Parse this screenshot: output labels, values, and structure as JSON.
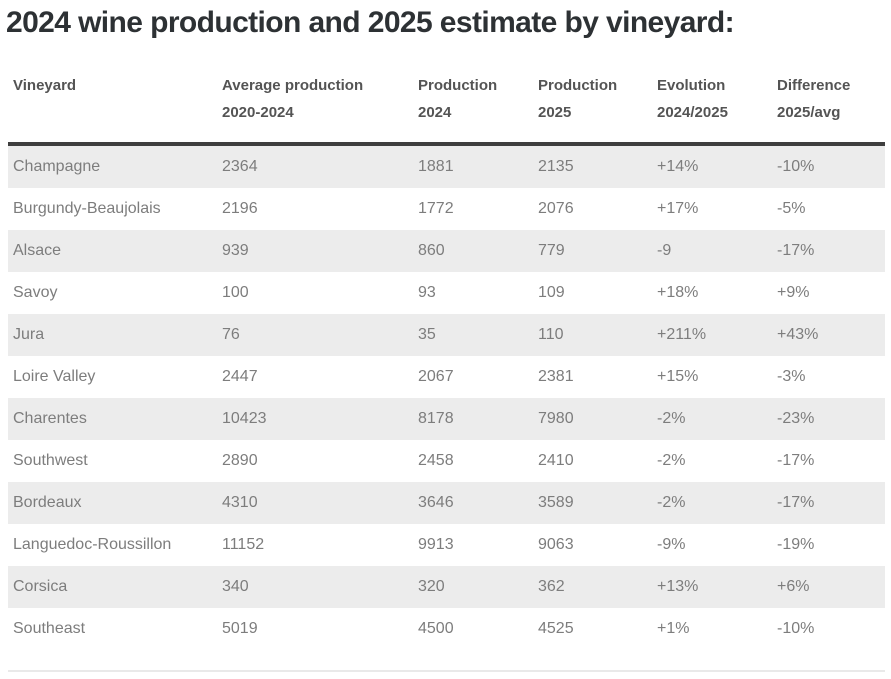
{
  "page": {
    "title": "2024 wine production and 2025 estimate by vineyard:"
  },
  "chart_data": {
    "type": "table",
    "title": "2024 wine production and 2025 estimate by vineyard:",
    "columns": [
      {
        "line1": "Vineyard",
        "line2": ""
      },
      {
        "line1": "Average production",
        "line2": "2020-2024"
      },
      {
        "line1": "Production",
        "line2": "2024"
      },
      {
        "line1": "Production",
        "line2": "2025"
      },
      {
        "line1": "Evolution",
        "line2": "2024/2025"
      },
      {
        "line1": "Difference",
        "line2": "2025/avg"
      }
    ],
    "rows": [
      [
        "Champagne",
        "2364",
        "1881",
        "2135",
        "+14%",
        "-10%"
      ],
      [
        "Burgundy-Beaujolais",
        "2196",
        "1772",
        "2076",
        "+17%",
        "-5%"
      ],
      [
        "Alsace",
        "939",
        "860",
        "779",
        "-9",
        "-17%"
      ],
      [
        "Savoy",
        "100",
        "93",
        "109",
        "+18%",
        "+9%"
      ],
      [
        "Jura",
        "76",
        "35",
        "110",
        "+211%",
        "+43%"
      ],
      [
        "Loire Valley",
        "2447",
        "2067",
        "2381",
        "+15%",
        "-3%"
      ],
      [
        "Charentes",
        "10423",
        "8178",
        "7980",
        "-2%",
        "-23%"
      ],
      [
        "Southwest",
        "2890",
        "2458",
        "2410",
        "-2%",
        "-17%"
      ],
      [
        "Bordeaux",
        "4310",
        "3646",
        "3589",
        "-2%",
        "-17%"
      ],
      [
        "Languedoc-Roussillon",
        "11152",
        "9913",
        "9063",
        "-9%",
        "-19%"
      ],
      [
        "Corsica",
        "340",
        "320",
        "362",
        "+13%",
        "+6%"
      ],
      [
        "Southeast",
        "5019",
        "4500",
        "4525",
        "+1%",
        "-10%"
      ]
    ],
    "layout": {
      "stripe_pattern": "odd rows shaded, starting with first data row",
      "header_rule": "thick dark bar under header"
    }
  },
  "colors": {
    "title_text": "#2d3134",
    "header_text": "#545454",
    "header_rule": "#3e3e3e",
    "cell_text": "#7d7d7d",
    "row_stripe": "#ececec",
    "bottom_rule": "#e9e9e9",
    "background": "#ffffff"
  }
}
